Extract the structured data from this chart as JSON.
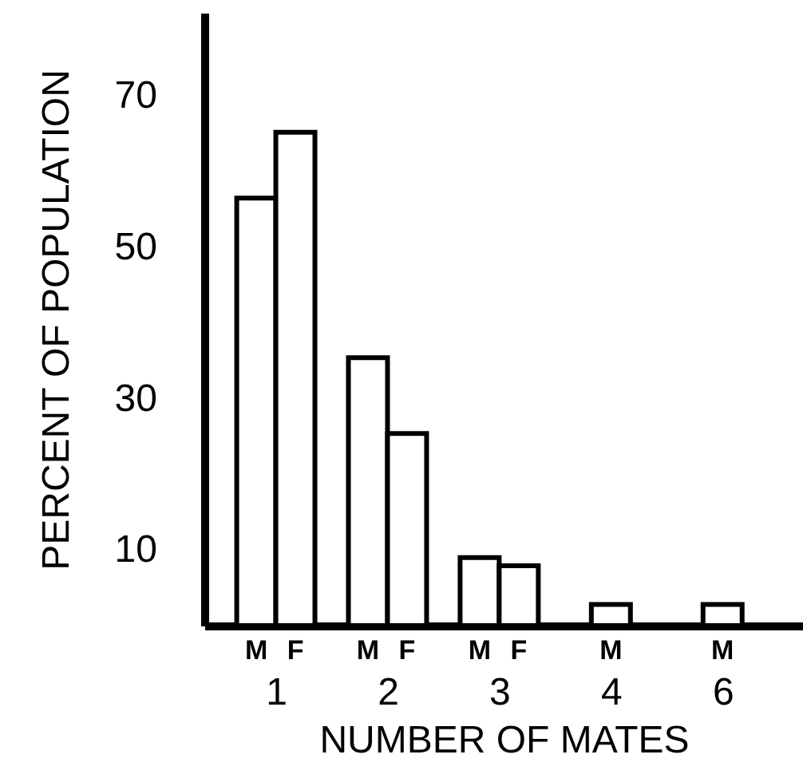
{
  "chart_data": {
    "type": "bar",
    "xlabel": "NUMBER OF MATES",
    "ylabel": "PERCENT OF POPULATION",
    "categories": [
      "1",
      "2",
      "3",
      "4",
      "6"
    ],
    "series": [
      {
        "name": "M",
        "color": "#ffffff",
        "values": [
          56.5,
          35.4,
          9.0,
          2.8,
          2.8
        ]
      },
      {
        "name": "F",
        "color": "#ffffff",
        "values": [
          65.2,
          25.4,
          7.9,
          null,
          null
        ]
      }
    ],
    "ylim": [
      0,
      81
    ],
    "yticks": [
      10,
      30,
      50,
      70
    ]
  }
}
